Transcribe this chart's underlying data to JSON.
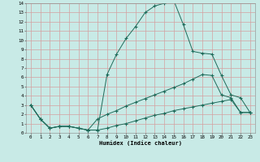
{
  "xlabel": "Humidex (Indice chaleur)",
  "bg_color": "#c8eae6",
  "grid_color": "#d4a0a0",
  "line_color": "#1e6b5a",
  "xlim": [
    -0.5,
    23.5
  ],
  "ylim": [
    0,
    14
  ],
  "xticks": [
    0,
    1,
    2,
    3,
    4,
    5,
    6,
    7,
    8,
    9,
    10,
    11,
    12,
    13,
    14,
    15,
    16,
    17,
    18,
    19,
    20,
    21,
    22,
    23
  ],
  "yticks": [
    0,
    1,
    2,
    3,
    4,
    5,
    6,
    7,
    8,
    9,
    10,
    11,
    12,
    13,
    14
  ],
  "line1_x": [
    0,
    1,
    2,
    3,
    4,
    5,
    6,
    7,
    8,
    9,
    10,
    11,
    12,
    13,
    14,
    15,
    16,
    17,
    18,
    19,
    20,
    21,
    22,
    23
  ],
  "line1_y": [
    3,
    1.5,
    0.5,
    0.7,
    0.7,
    0.5,
    0.3,
    0.3,
    6.3,
    8.5,
    10.2,
    11.5,
    13.0,
    13.7,
    14.0,
    14.3,
    11.7,
    8.8,
    8.6,
    8.5,
    6.2,
    4.1,
    3.8,
    2.2
  ],
  "line2_x": [
    0,
    1,
    2,
    3,
    4,
    5,
    6,
    7,
    8,
    9,
    10,
    11,
    12,
    13,
    14,
    15,
    16,
    17,
    18,
    19,
    20,
    21,
    22,
    23
  ],
  "line2_y": [
    3,
    1.5,
    0.5,
    0.7,
    0.7,
    0.5,
    0.3,
    1.5,
    2.0,
    2.4,
    2.9,
    3.3,
    3.7,
    4.1,
    4.5,
    4.9,
    5.3,
    5.8,
    6.3,
    6.2,
    4.1,
    3.8,
    2.2,
    2.2
  ],
  "line3_x": [
    0,
    1,
    2,
    3,
    4,
    5,
    6,
    7,
    8,
    9,
    10,
    11,
    12,
    13,
    14,
    15,
    16,
    17,
    18,
    19,
    20,
    21,
    22,
    23
  ],
  "line3_y": [
    3,
    1.5,
    0.5,
    0.7,
    0.7,
    0.5,
    0.3,
    0.3,
    0.5,
    0.8,
    1.0,
    1.3,
    1.6,
    1.9,
    2.1,
    2.4,
    2.6,
    2.8,
    3.0,
    3.2,
    3.4,
    3.6,
    2.2,
    2.2
  ]
}
